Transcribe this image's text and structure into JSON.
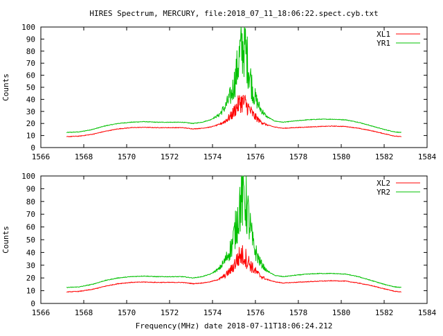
{
  "title": "HIRES Spectrum, MERCURY, file:2018_07_11_18:06:22.spect.cyb.txt",
  "footer": "Frequency(MHz) date 2018-07-11T18:06:24.212",
  "colors": {
    "red": "#ff0000",
    "green": "#00c000",
    "axis": "#000000"
  },
  "chart_data": [
    {
      "type": "line",
      "ylabel": "Counts",
      "xlim": [
        1566,
        1584
      ],
      "ylim": [
        0,
        100
      ],
      "x_ticks": [
        "1566",
        "1568",
        "1570",
        "1572",
        "1574",
        "1576",
        "1578",
        "1580",
        "1582",
        "1584"
      ],
      "y_ticks": [
        "0",
        "10",
        "20",
        "30",
        "40",
        "50",
        "60",
        "70",
        "80",
        "90",
        "100"
      ],
      "legend_position": "top-right",
      "series": [
        {
          "name": "XL1",
          "color": "#ff0000",
          "x": [
            1567.2,
            1567.8,
            1568.4,
            1569.0,
            1569.6,
            1570.2,
            1570.8,
            1571.4,
            1572.0,
            1572.6,
            1573.1,
            1573.5,
            1573.9,
            1574.3,
            1574.6,
            1574.9,
            1575.1,
            1575.3,
            1575.5,
            1575.7,
            1575.9,
            1576.2,
            1576.5,
            1576.9,
            1577.3,
            1577.8,
            1578.4,
            1579.0,
            1579.6,
            1580.2,
            1580.8,
            1581.4,
            1582.0,
            1582.5,
            1582.8
          ],
          "y": [
            9,
            9.5,
            11,
            13.5,
            15.5,
            16.5,
            16.8,
            16.5,
            16.5,
            16.5,
            15.5,
            16,
            17,
            19,
            22,
            27,
            33,
            38,
            37,
            32,
            27,
            22,
            19,
            17,
            16,
            16.5,
            17,
            17.5,
            17.8,
            17.5,
            16,
            14,
            11.5,
            9.5,
            9
          ]
        },
        {
          "name": "YR1",
          "color": "#00c000",
          "x": [
            1567.2,
            1567.8,
            1568.4,
            1569.0,
            1569.6,
            1570.2,
            1570.8,
            1571.4,
            1572.0,
            1572.6,
            1573.1,
            1573.5,
            1573.9,
            1574.3,
            1574.6,
            1574.9,
            1575.1,
            1575.3,
            1575.5,
            1575.7,
            1575.9,
            1576.2,
            1576.5,
            1576.9,
            1577.3,
            1577.8,
            1578.4,
            1579.0,
            1579.6,
            1580.2,
            1580.8,
            1581.4,
            1582.0,
            1582.5,
            1582.8
          ],
          "y": [
            12.5,
            13,
            15,
            18,
            20,
            21,
            21.5,
            21,
            21,
            21,
            20,
            21,
            23,
            27,
            34,
            45,
            60,
            80,
            85,
            65,
            45,
            33,
            26,
            22,
            21,
            22,
            23,
            23.5,
            23.5,
            23,
            21,
            18,
            15,
            13,
            12.5
          ]
        }
      ]
    },
    {
      "type": "line",
      "ylabel": "Counts",
      "xlim": [
        1566,
        1584
      ],
      "ylim": [
        0,
        100
      ],
      "x_ticks": [
        "1566",
        "1568",
        "1570",
        "1572",
        "1574",
        "1576",
        "1578",
        "1580",
        "1582",
        "1584"
      ],
      "y_ticks": [
        "0",
        "10",
        "20",
        "30",
        "40",
        "50",
        "60",
        "70",
        "80",
        "90",
        "100"
      ],
      "legend_position": "top-right",
      "series": [
        {
          "name": "XL2",
          "color": "#ff0000",
          "x": [
            1567.2,
            1567.8,
            1568.4,
            1569.0,
            1569.6,
            1570.2,
            1570.8,
            1571.4,
            1572.0,
            1572.6,
            1573.1,
            1573.5,
            1573.9,
            1574.3,
            1574.6,
            1574.9,
            1575.1,
            1575.3,
            1575.5,
            1575.7,
            1575.9,
            1576.2,
            1576.5,
            1576.9,
            1577.3,
            1577.8,
            1578.4,
            1579.0,
            1579.6,
            1580.2,
            1580.8,
            1581.4,
            1582.0,
            1582.5,
            1582.8
          ],
          "y": [
            9,
            9.5,
            11,
            13.5,
            15.5,
            16.5,
            16.8,
            16.5,
            16.5,
            16.5,
            15.5,
            16,
            17,
            19,
            22,
            27,
            33,
            38,
            37,
            32,
            27,
            22,
            19,
            17,
            16,
            16.5,
            17,
            17.5,
            17.8,
            17.5,
            16,
            14,
            11.5,
            9.5,
            9
          ]
        },
        {
          "name": "YR2",
          "color": "#00c000",
          "x": [
            1567.2,
            1567.8,
            1568.4,
            1569.0,
            1569.6,
            1570.2,
            1570.8,
            1571.4,
            1572.0,
            1572.6,
            1573.1,
            1573.5,
            1573.9,
            1574.3,
            1574.6,
            1574.9,
            1575.1,
            1575.3,
            1575.5,
            1575.7,
            1575.9,
            1576.2,
            1576.5,
            1576.9,
            1577.3,
            1577.8,
            1578.4,
            1579.0,
            1579.6,
            1580.2,
            1580.8,
            1581.4,
            1582.0,
            1582.5,
            1582.8
          ],
          "y": [
            12.5,
            13,
            15,
            18,
            20,
            21,
            21.5,
            21,
            21,
            21,
            20,
            21,
            23,
            27,
            34,
            45,
            60,
            80,
            85,
            65,
            45,
            33,
            26,
            22,
            21,
            22,
            23,
            23.5,
            23.5,
            23,
            21,
            18,
            15,
            13,
            12.5
          ]
        }
      ]
    }
  ]
}
